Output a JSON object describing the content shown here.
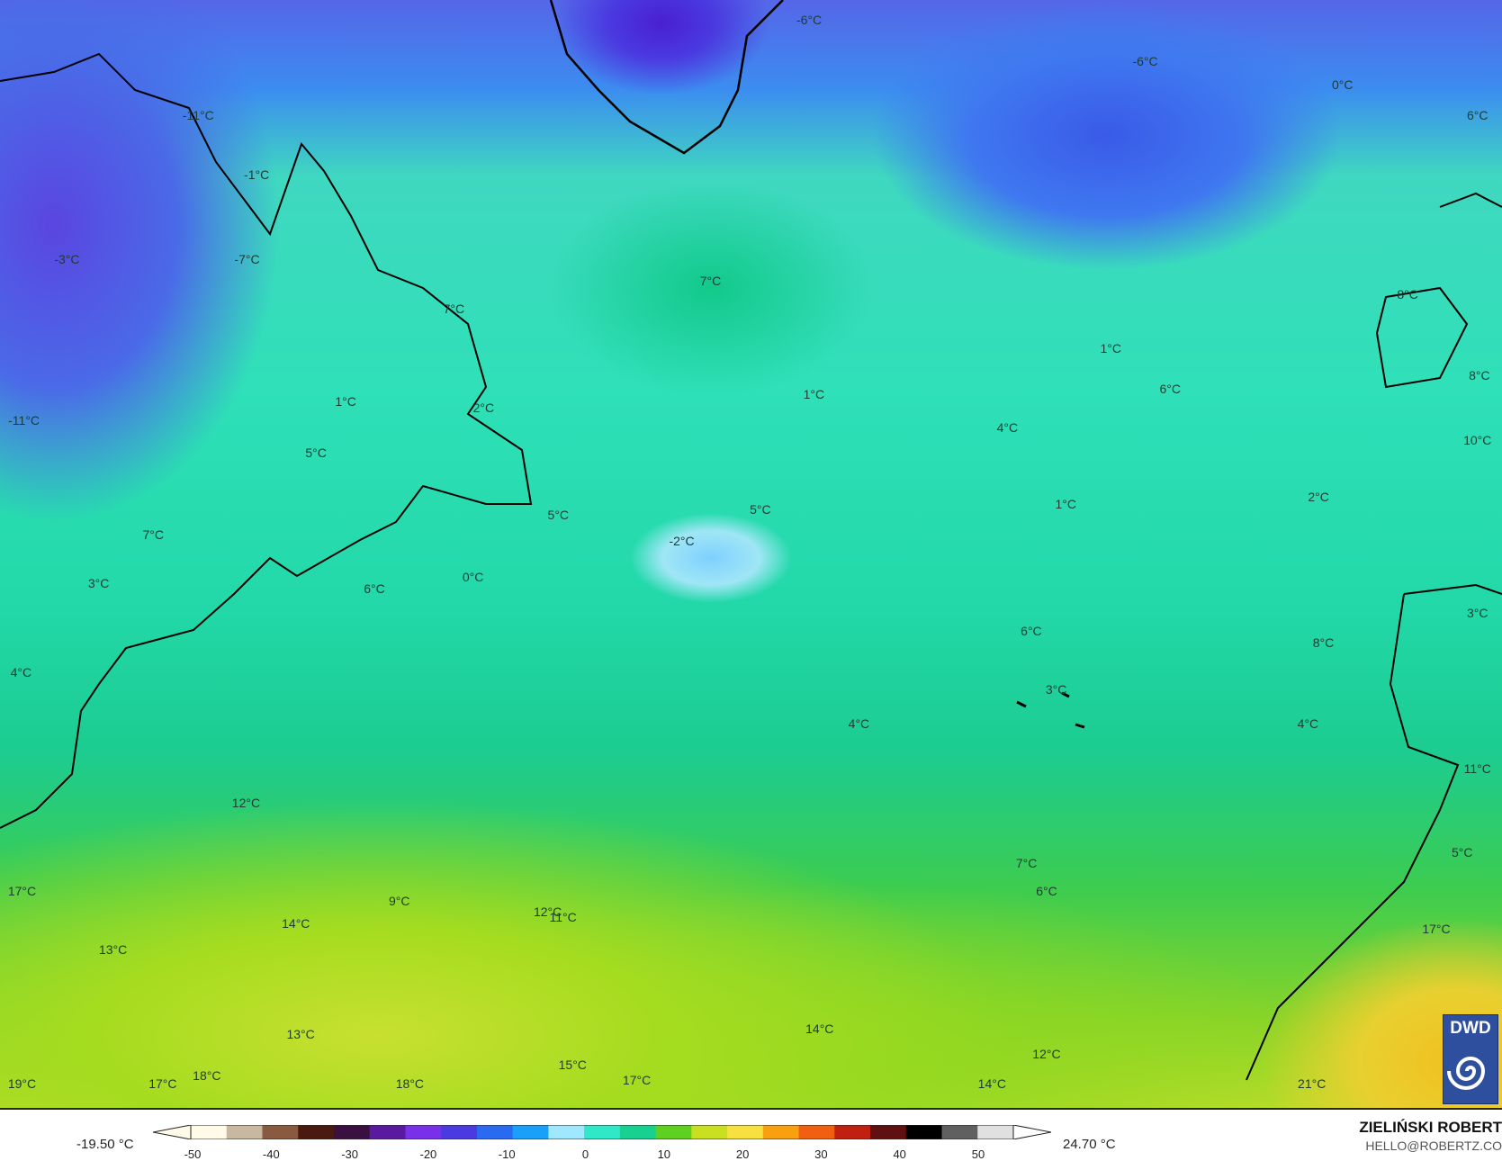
{
  "map": {
    "labels": [
      "-6°C",
      "-6°C",
      "0°C",
      "6°C",
      "-11°C",
      "-1°C",
      "-3°C",
      "-7°C",
      "7°C",
      "7°C",
      "1°C",
      "8°C",
      "1°C",
      "1°C",
      "6°C",
      "8°C",
      "-11°C",
      "2°C",
      "4°C",
      "10°C",
      "5°C",
      "1°C",
      "2°C",
      "5°C",
      "5°C",
      "7°C",
      "-2°C",
      "3°C",
      "0°C",
      "6°C",
      "3°C",
      "6°C",
      "8°C",
      "4°C",
      "3°C",
      "4°C",
      "4°C",
      "11°C",
      "12°C",
      "5°C",
      "7°C",
      "6°C",
      "17°C",
      "9°C",
      "12°C",
      "11°C",
      "14°C",
      "17°C",
      "13°C",
      "14°C",
      "13°C",
      "12°C",
      "15°C",
      "18°C",
      "17°C",
      "19°C",
      "17°C",
      "18°C",
      "14°C",
      "21°C"
    ],
    "logo_text": "DWD"
  },
  "legend": {
    "min": "-19.50 °C",
    "max": "24.70 °C",
    "ticks": [
      "-50",
      "-40",
      "-30",
      "-20",
      "-10",
      "0",
      "10",
      "20",
      "30",
      "40",
      "50"
    ],
    "colors": [
      "#fffbe8",
      "#c8b8a0",
      "#8a5a40",
      "#4a1a10",
      "#3a1040",
      "#5a1aa0",
      "#7a30e8",
      "#4a3ae0",
      "#2a6af0",
      "#1aa0f8",
      "#a0e8ff",
      "#30e8c8",
      "#18d090",
      "#60d020",
      "#c8e020",
      "#f8e040",
      "#f8a010",
      "#f06010",
      "#c02010",
      "#601010",
      "#000000",
      "#606060",
      "#e0e0e0"
    ]
  },
  "credit": {
    "author": "ZIELIŃSKI ROBERT",
    "email": "HELLO@ROBERTZ.CO"
  }
}
